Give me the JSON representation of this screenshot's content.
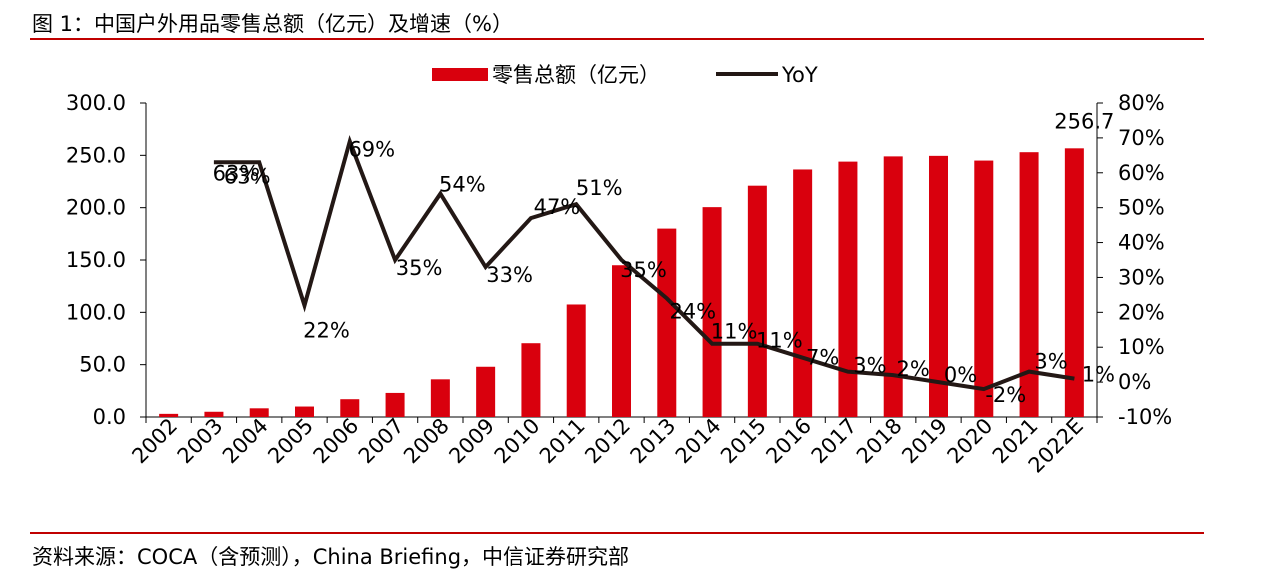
{
  "figure_title": "图 1：中国户外用品零售总额（亿元）及增速（%）",
  "source_note": "资料来源：COCA（含预测），China Briefing，中信证券研究部",
  "colors": {
    "bar": "#d9000d",
    "line": "#231815",
    "rule": "#c00000"
  },
  "chart_data": {
    "type": "bar",
    "categories": [
      "2002",
      "2003",
      "2004",
      "2005",
      "2006",
      "2007",
      "2008",
      "2009",
      "2010",
      "2011",
      "2012",
      "2013",
      "2014",
      "2015",
      "2016",
      "2017",
      "2018",
      "2019",
      "2020",
      "2021",
      "2022E"
    ],
    "series": [
      {
        "name": "零售总额（亿元）",
        "type": "bar",
        "axis": "left",
        "values": [
          3.0,
          5.0,
          8.3,
          10.0,
          17.0,
          23.0,
          36.0,
          48.0,
          70.5,
          107.5,
          145.0,
          180.0,
          200.5,
          221.0,
          236.5,
          244.0,
          249.0,
          249.5,
          245.0,
          253.0,
          256.7
        ]
      },
      {
        "name": "YoY",
        "type": "line",
        "axis": "right",
        "values": [
          null,
          63,
          63,
          22,
          69,
          35,
          54,
          33,
          47,
          51,
          35,
          24,
          11,
          11,
          7,
          3,
          2,
          0,
          -2,
          3,
          1
        ]
      }
    ],
    "yoy_labels": [
      "",
      "63%",
      "63%",
      "22%",
      "69%",
      "35%",
      "54%",
      "33%",
      "47%",
      "51%",
      "35%",
      "24%",
      "11%",
      "11%",
      "7%",
      "3%",
      "2%",
      "0%",
      "-2%",
      "3%",
      "1%"
    ],
    "bar_value_label": "256.7",
    "y_left": {
      "min": 0,
      "max": 300,
      "ticks": [
        "0.0",
        "50.0",
        "100.0",
        "150.0",
        "200.0",
        "250.0",
        "300.0"
      ]
    },
    "y_right": {
      "min": -10,
      "max": 80,
      "ticks": [
        "-10%",
        "0%",
        "10%",
        "20%",
        "30%",
        "40%",
        "50%",
        "60%",
        "70%",
        "80%"
      ]
    },
    "legend_position": "top-center",
    "grid": false
  }
}
